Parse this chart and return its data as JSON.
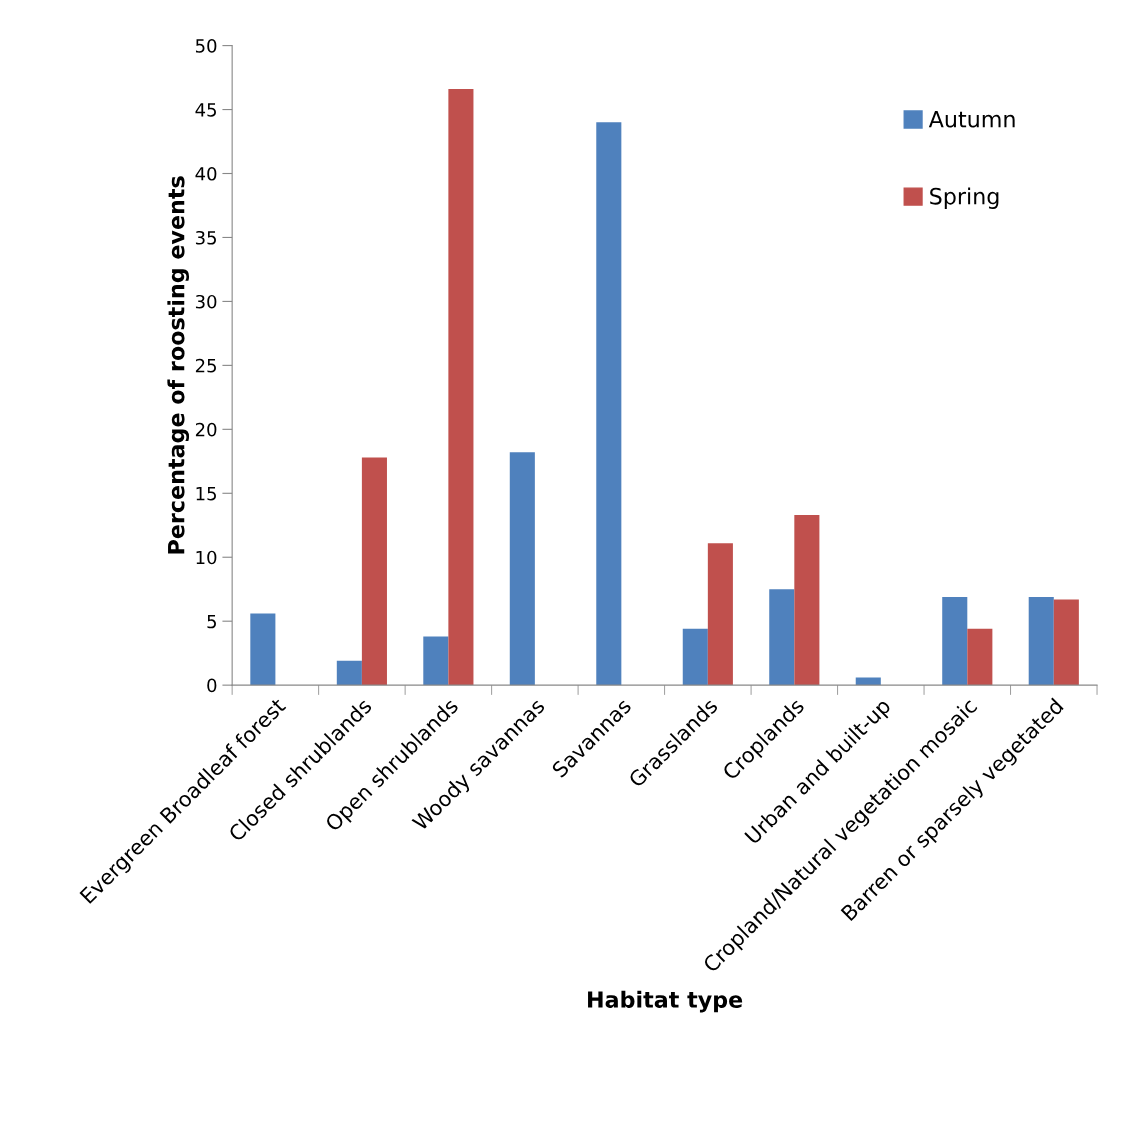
{
  "chart_data": {
    "type": "bar",
    "xlabel": "Habitat type",
    "ylabel": "Percentage of roosting events",
    "categories": [
      "Evergreen Broadleaf forest",
      "Closed shrublands",
      "Open shrublands",
      "Woody savannas",
      "Savannas",
      "Grasslands",
      "Croplands",
      "Urban and built-up",
      "Cropland/Natural vegetation mosaic",
      "Barren or sparsely vegetated"
    ],
    "series": [
      {
        "name": "Autumn",
        "color": "#4f81bd",
        "values": [
          5.6,
          1.9,
          3.8,
          18.2,
          44.0,
          4.4,
          7.5,
          0.6,
          6.9,
          6.9
        ]
      },
      {
        "name": "Spring",
        "color": "#c0504d",
        "values": [
          0,
          17.8,
          46.6,
          0,
          0,
          11.1,
          13.3,
          0,
          4.4,
          6.7
        ]
      }
    ],
    "ylim": [
      0,
      50
    ],
    "yticks": [
      0,
      5,
      10,
      15,
      20,
      25,
      30,
      35,
      40,
      45,
      50
    ],
    "grid": false,
    "legend": "top right"
  }
}
